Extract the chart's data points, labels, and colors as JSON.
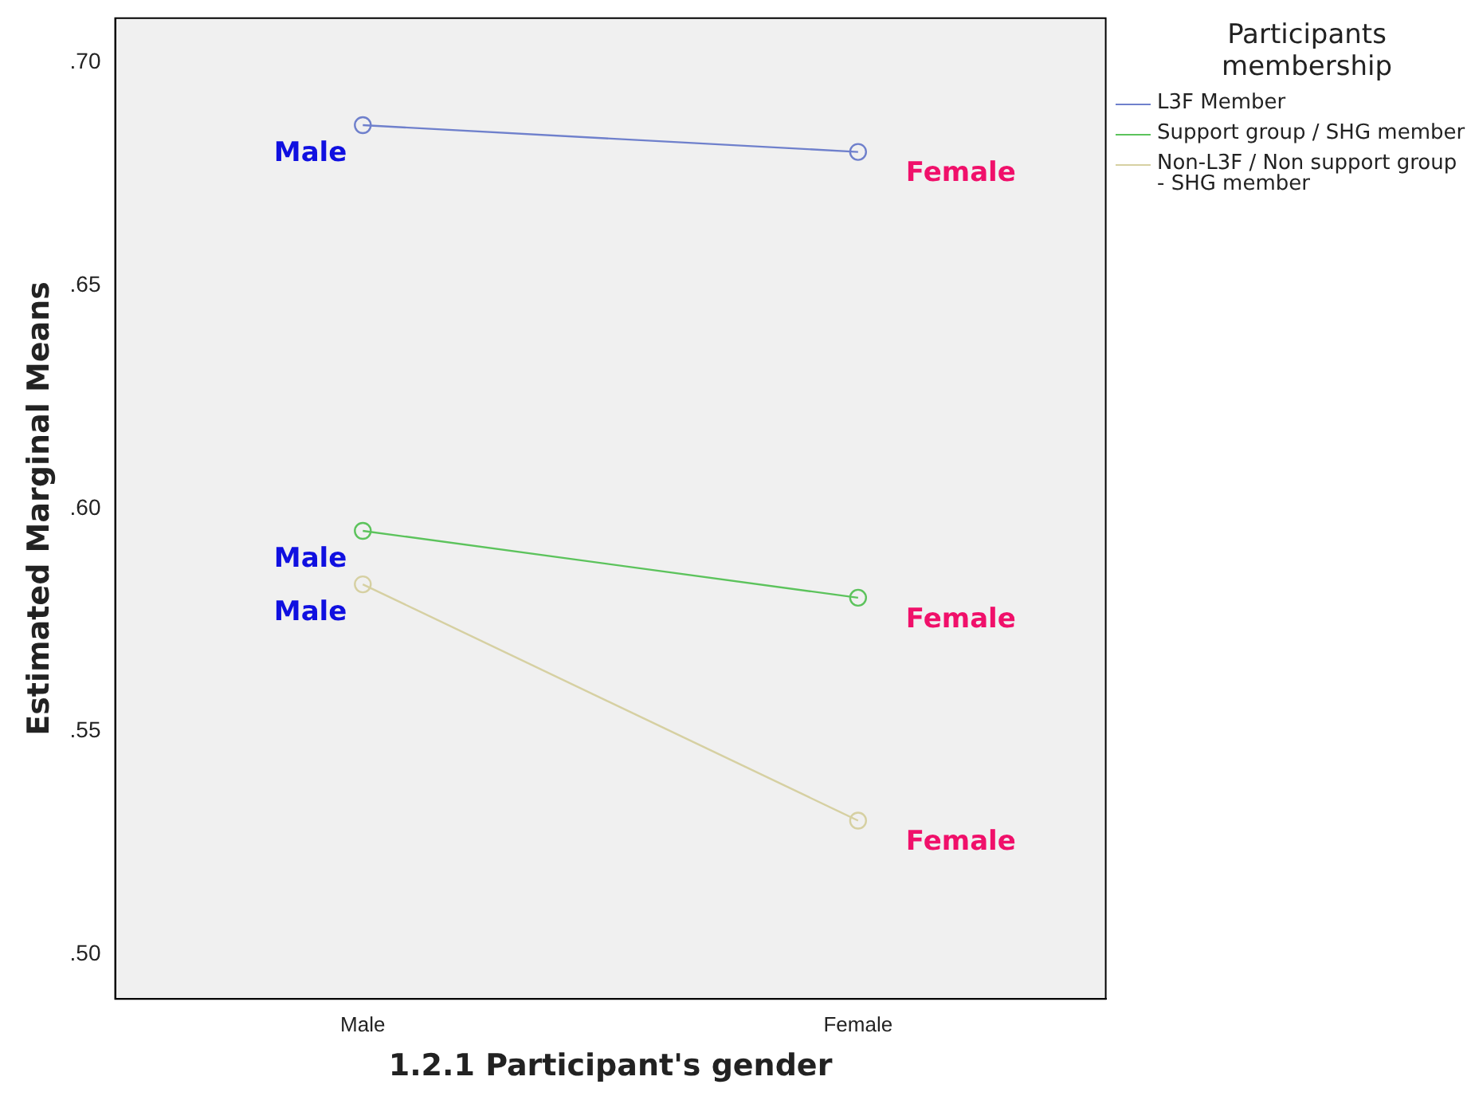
{
  "chart_data": {
    "type": "line",
    "xlabel": "1.2.1 Participant's gender",
    "ylabel": "Estimated Marginal Means",
    "legend_title": "Participants membership",
    "categories": [
      "Male",
      "Female"
    ],
    "series": [
      {
        "name": "L3F Member",
        "color": "#6f80cc",
        "values": [
          0.686,
          0.68
        ]
      },
      {
        "name": "Support group / SHG member",
        "color": "#5cc35c",
        "values": [
          0.595,
          0.58
        ]
      },
      {
        "name": "Non-L3F / Non support group - SHG member",
        "color": "#d6d0a2",
        "values": [
          0.583,
          0.53
        ]
      }
    ],
    "ylim": [
      0.49,
      0.71
    ],
    "yticks": [
      {
        "value": 0.5,
        "label": ".50"
      },
      {
        "value": 0.55,
        "label": ".55"
      },
      {
        "value": 0.6,
        "label": ".60"
      },
      {
        "value": 0.65,
        "label": ".65"
      },
      {
        "value": 0.7,
        "label": ".70"
      }
    ],
    "grid": false,
    "legend": "right",
    "marker": "circle",
    "line_style": "solid",
    "annotations": [
      {
        "text": "Male",
        "x": "Male",
        "y": 0.686
      },
      {
        "text": "Female",
        "x": "Female",
        "y": 0.68
      },
      {
        "text": "Male",
        "x": "Male",
        "y": 0.595
      },
      {
        "text": "Female",
        "x": "Female",
        "y": 0.58
      },
      {
        "text": "Male",
        "x": "Male",
        "y": 0.583
      },
      {
        "text": "Female",
        "x": "Female",
        "y": 0.53
      }
    ]
  }
}
